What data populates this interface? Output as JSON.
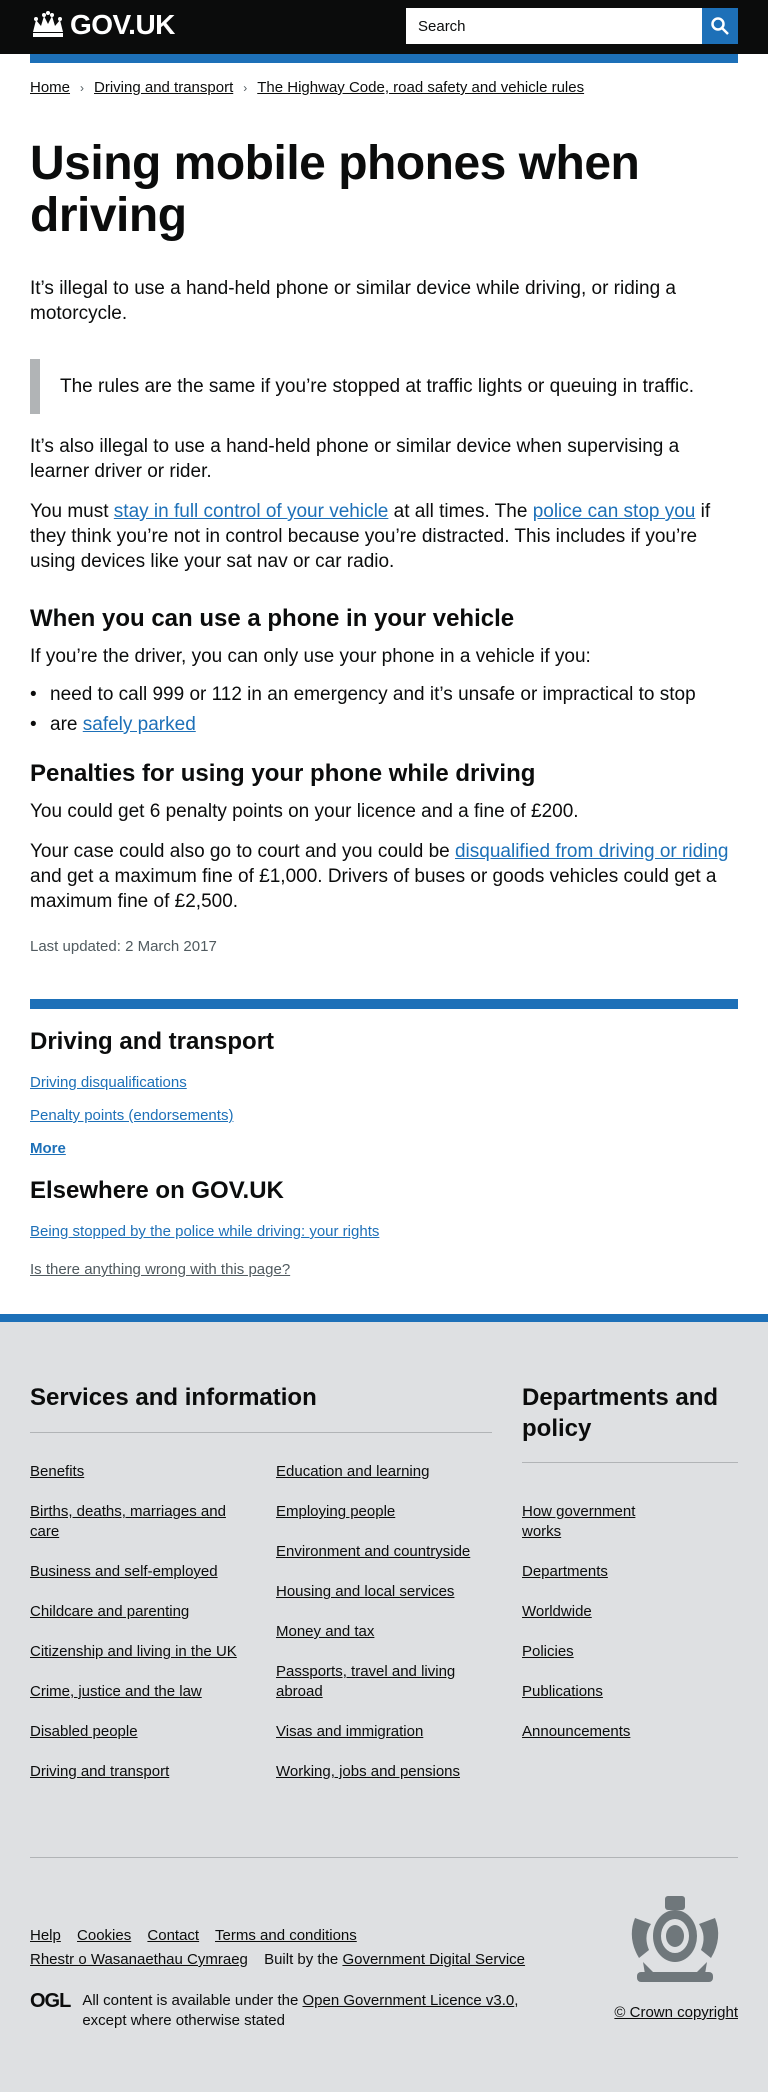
{
  "header": {
    "logo_text": "GOV.UK",
    "search_placeholder": "Search"
  },
  "breadcrumbs": [
    "Home",
    "Driving and transport",
    "The Highway Code, road safety and vehicle rules"
  ],
  "page": {
    "title": "Using mobile phones when driving",
    "lead": "It’s illegal to use a hand-held phone or similar device while driving, or riding a motorcycle.",
    "inset": "The rules are the same if you’re stopped at traffic lights or queuing in traffic.",
    "para_supervising": "It’s also illegal to use a hand-held phone or similar device when supervising a learner driver or rider.",
    "control": {
      "part1": "You must ",
      "link1": "stay in full control of your vehicle",
      "part2": " at all times. The ",
      "link2": "police can stop you",
      "part3": " if they think you’re not in control because you’re distracted. This includes if you’re using devices like your sat nav or car radio."
    },
    "section1_title": "When you can use a phone in your vehicle",
    "section1_intro": "If you’re the driver, you can only use your phone in a vehicle if you:",
    "bullet1": "need to call 999 or 112 in an emergency and it’s unsafe or impractical to stop",
    "bullet2_prefix": "are ",
    "bullet2_link": "safely parked",
    "section2_title": "Penalties for using your phone while driving",
    "penalty_points": "You could get 6 penalty points on your licence and a fine of £200.",
    "court": {
      "part1": "Your case could also go to court and you could be ",
      "link": "disqualified from driving or riding",
      "part2": " and get a maximum fine of £1,000. Drivers of buses or goods vehicles could get a maximum fine of £2,500."
    },
    "last_updated": "Last updated: 2 March 2017"
  },
  "related": {
    "title": "Driving and transport",
    "links": [
      "Driving disqualifications",
      "Penalty points (endorsements)"
    ],
    "more": "More",
    "elsewhere_title": "Elsewhere on GOV.UK",
    "elsewhere_link": "Being stopped by the police while driving: your rights",
    "feedback": "Is there anything wrong with this page?"
  },
  "footer": {
    "services_title": "Services and information",
    "services_col1": [
      "Benefits",
      "Births, deaths, marriages and care",
      "Business and self-employed",
      "Childcare and parenting",
      "Citizenship and living in the UK",
      "Crime, justice and the law",
      "Disabled people",
      "Driving and transport"
    ],
    "services_col2": [
      "Education and learning",
      "Employing people",
      "Environment and countryside",
      "Housing and local services",
      "Money and tax",
      "Passports, travel and living abroad",
      "Visas and immigration",
      "Working, jobs and pensions"
    ],
    "departments_title": "Departments and policy",
    "departments": [
      "How government works",
      "Departments",
      "Worldwide",
      "Policies",
      "Publications",
      "Announcements"
    ],
    "meta_links": [
      "Help",
      "Cookies",
      "Contact",
      "Terms and conditions"
    ],
    "welsh": "Rhestr o Wasanaethau Cymraeg",
    "built_by_prefix": "Built by the ",
    "built_by_link": "Government Digital Service",
    "ogl_logo": "OGL",
    "licence_prefix": "All content is available under the ",
    "licence_link": "Open Government Licence v3.0",
    "licence_suffix": ", except where otherwise stated",
    "copyright": "© Crown copyright"
  }
}
